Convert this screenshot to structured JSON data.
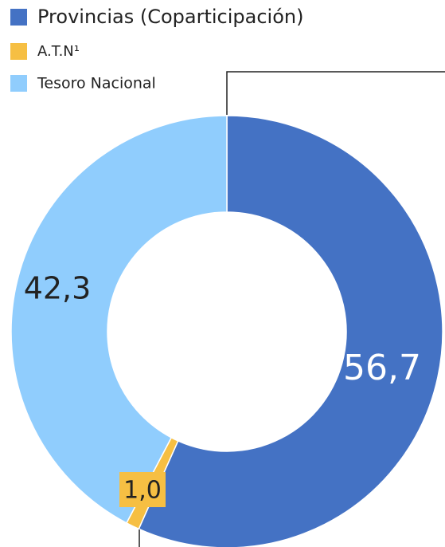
{
  "chart_data": {
    "type": "donut",
    "categories": [
      "Provincias (Coparticipación)",
      "A.T.N¹",
      "Tesoro Nacional"
    ],
    "values": [
      56.7,
      1.0,
      42.3
    ],
    "value_labels": [
      "56,7",
      "1,0",
      "42,3"
    ],
    "colors": [
      "#4472c4",
      "#f6bf43",
      "#90cdfd"
    ]
  }
}
